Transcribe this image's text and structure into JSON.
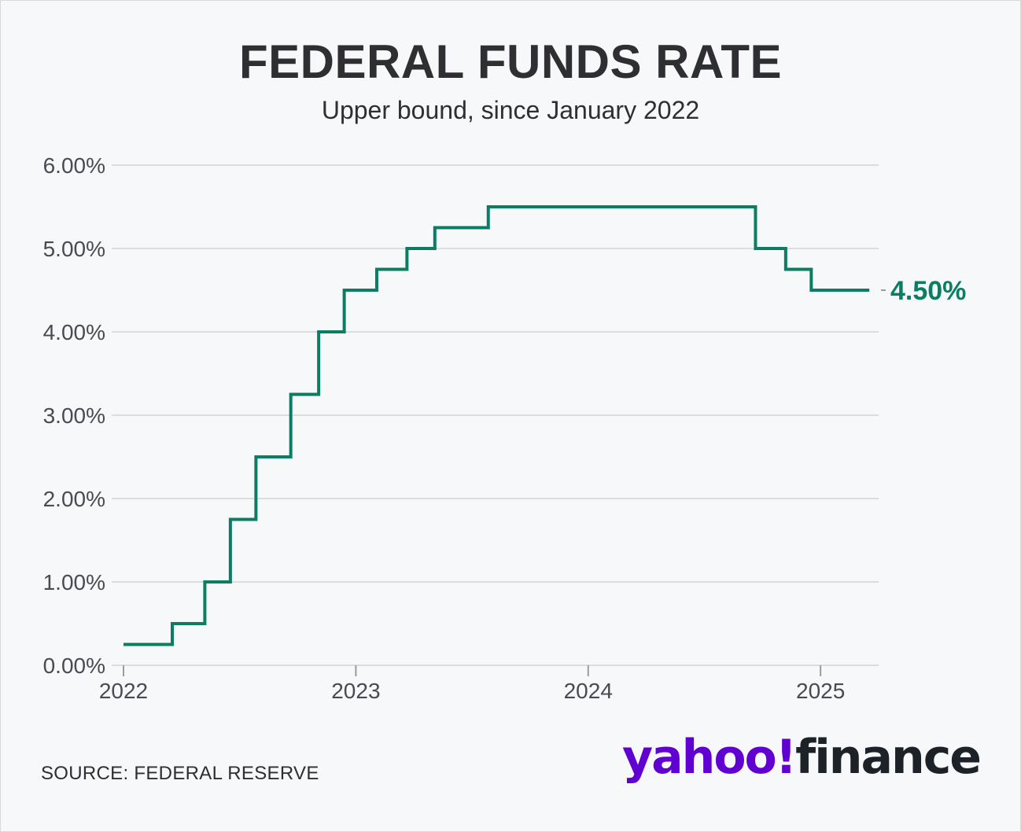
{
  "colors": {
    "line": "#0a7d62",
    "grid": "#dcdde0",
    "brand_purple": "#6001d2",
    "brand_dark": "#1d2228"
  },
  "source": "SOURCE: FEDERAL RESERVE",
  "logo": {
    "part1": "yahoo!",
    "part2": "finance"
  },
  "chart_data": {
    "type": "line",
    "step": true,
    "title": "FEDERAL FUNDS RATE",
    "subtitle": "Upper bound, since January 2022",
    "xlabel": "",
    "ylabel": "",
    "xlim": [
      2022.0,
      2025.25
    ],
    "ylim": [
      0,
      6
    ],
    "grid": true,
    "y_ticks": [
      0,
      1,
      2,
      3,
      4,
      5,
      6
    ],
    "y_tick_labels": [
      "0.00%",
      "1.00%",
      "2.00%",
      "3.00%",
      "4.00%",
      "5.00%",
      "6.00%"
    ],
    "x_ticks": [
      2022,
      2023,
      2024,
      2025
    ],
    "x_tick_labels": [
      "2022",
      "2023",
      "2024",
      "2025"
    ],
    "end_label": "4.50%",
    "series": [
      {
        "x": [
          2022.0,
          2022.21,
          2022.35,
          2022.46,
          2022.57,
          2022.72,
          2022.84,
          2022.95,
          2023.09,
          2023.22,
          2023.34,
          2023.57,
          2024.72,
          2024.85,
          2024.96,
          2025.21
        ],
        "y": [
          0.25,
          0.5,
          1.0,
          1.75,
          2.5,
          3.25,
          4.0,
          4.5,
          4.75,
          5.0,
          5.25,
          5.5,
          5.0,
          4.75,
          4.5,
          4.5
        ]
      }
    ]
  }
}
